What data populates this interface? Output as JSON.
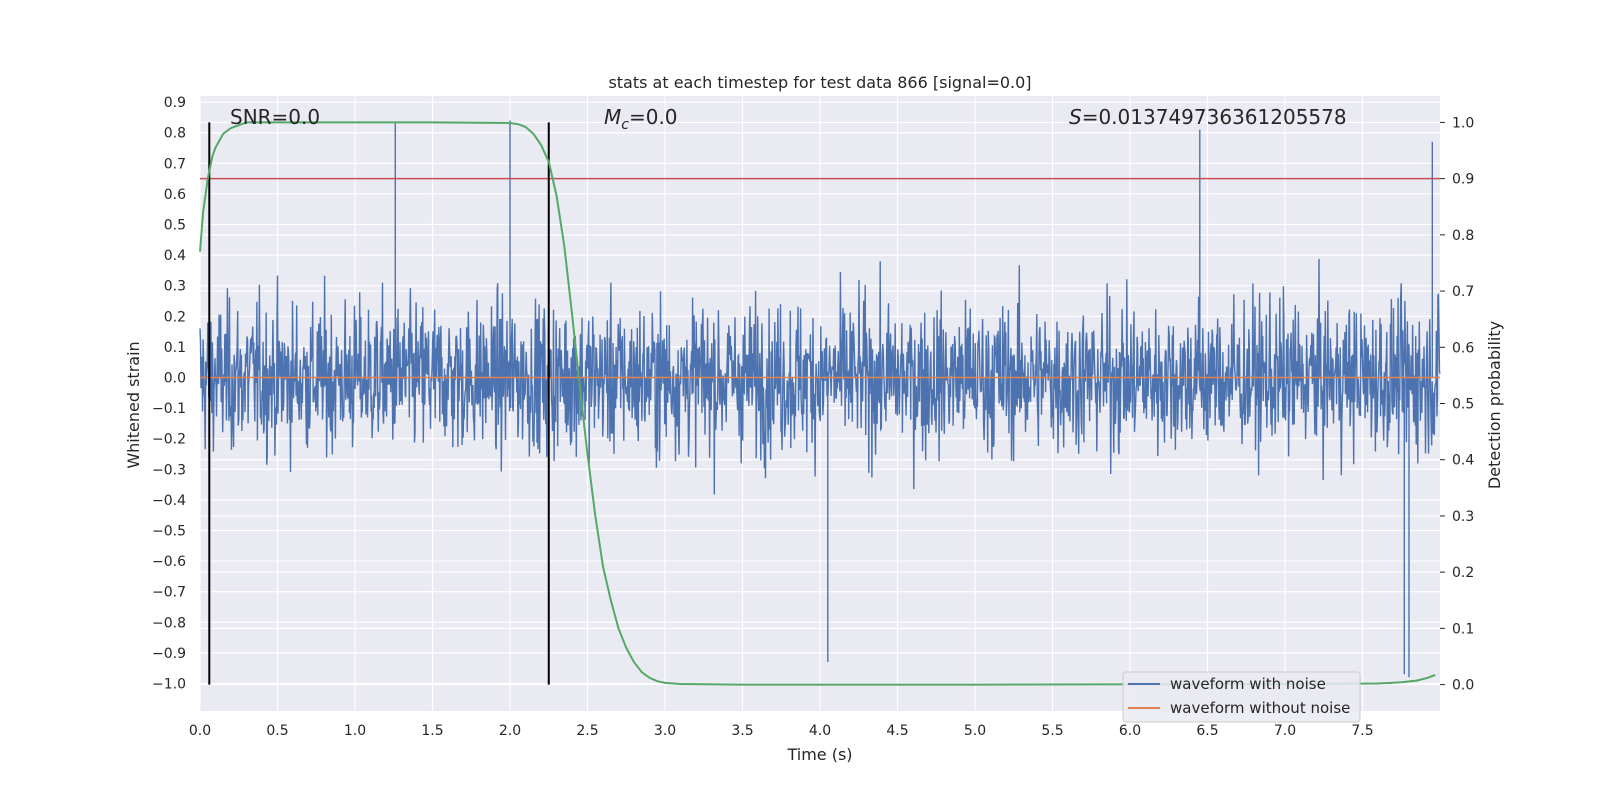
{
  "chart_data": {
    "type": "line",
    "title": "stats at each timestep for test data 866 [signal=0.0]",
    "xlabel": "Time (s)",
    "ylabel_left": "Whitened strain",
    "ylabel_right": "Detection probability",
    "xlim": [
      0.0,
      8.0
    ],
    "ylim_left": [
      -1.09,
      0.92
    ],
    "ylim_right": [
      -0.047,
      1.047
    ],
    "x_ticks": [
      "0.0",
      "0.5",
      "1.0",
      "1.5",
      "2.0",
      "2.5",
      "3.0",
      "3.5",
      "4.0",
      "4.5",
      "5.0",
      "5.5",
      "6.0",
      "6.5",
      "7.0",
      "7.5"
    ],
    "y_ticks_left": [
      "0.9",
      "0.8",
      "0.7",
      "0.6",
      "0.5",
      "0.4",
      "0.3",
      "0.2",
      "0.1",
      "0.0",
      "−0.1",
      "−0.2",
      "−0.3",
      "−0.4",
      "−0.5",
      "−0.6",
      "−0.7",
      "−0.8",
      "−0.9",
      "−1.0"
    ],
    "y_ticks_right": [
      "1.0",
      "0.9",
      "0.8",
      "0.7",
      "0.6",
      "0.5",
      "0.4",
      "0.3",
      "0.2",
      "0.1",
      "0.0"
    ],
    "grid": true,
    "annotations": {
      "snr": "SNR=0.0",
      "mc_symbol": "M",
      "mc_sub": "c",
      "mc_value": "=0.0",
      "s_symbol": "S",
      "s_value": "=0.013749736361205578"
    },
    "threshold": 0.9,
    "vlines": [
      0.06,
      2.25
    ],
    "legend": {
      "placement": "bottom-right",
      "entries": [
        "waveform with noise",
        "waveform without noise"
      ]
    },
    "series": [
      {
        "name": "waveform with noise",
        "color": "#4c72b0",
        "description": "whitened noise, |strain| mostly within 0.5, peaks near 0.84 and -0.97",
        "envelope_amplitude": 0.5,
        "peaks": [
          {
            "x": 1.26,
            "y": 0.83
          },
          {
            "x": 2.0,
            "y": 0.84
          },
          {
            "x": 4.05,
            "y": -0.93
          },
          {
            "x": 7.77,
            "y": -0.97
          },
          {
            "x": 7.8,
            "y": -0.98
          },
          {
            "x": 6.45,
            "y": 0.81
          },
          {
            "x": 7.95,
            "y": 0.77
          }
        ]
      },
      {
        "name": "waveform without noise",
        "color": "#dd8452",
        "x": [
          0.0,
          8.0
        ],
        "y": [
          0.0,
          0.0
        ]
      },
      {
        "name": "detection probability",
        "color": "#55a868",
        "axis": "right",
        "x": [
          0.0,
          0.02,
          0.05,
          0.08,
          0.1,
          0.15,
          0.2,
          0.25,
          0.3,
          0.4,
          0.5,
          1.0,
          1.5,
          2.0,
          2.05,
          2.1,
          2.15,
          2.2,
          2.25,
          2.3,
          2.35,
          2.4,
          2.45,
          2.5,
          2.55,
          2.6,
          2.65,
          2.7,
          2.75,
          2.8,
          2.85,
          2.9,
          2.95,
          3.0,
          3.1,
          3.5,
          5.0,
          7.0,
          7.6,
          7.75,
          7.85,
          7.92,
          7.97
        ],
        "y": [
          0.77,
          0.84,
          0.9,
          0.94,
          0.955,
          0.98,
          0.99,
          0.995,
          1.0,
          1.0,
          1.0,
          1.0,
          1.0,
          0.999,
          0.997,
          0.992,
          0.98,
          0.96,
          0.93,
          0.87,
          0.78,
          0.66,
          0.53,
          0.41,
          0.3,
          0.21,
          0.15,
          0.1,
          0.065,
          0.04,
          0.022,
          0.012,
          0.006,
          0.003,
          0.001,
          0.0,
          0.0,
          0.001,
          0.002,
          0.004,
          0.007,
          0.012,
          0.017
        ]
      },
      {
        "name": "threshold",
        "color": "#c44e52",
        "axis": "right",
        "x": [
          0.0,
          8.0
        ],
        "y": [
          0.9,
          0.9
        ]
      }
    ]
  }
}
